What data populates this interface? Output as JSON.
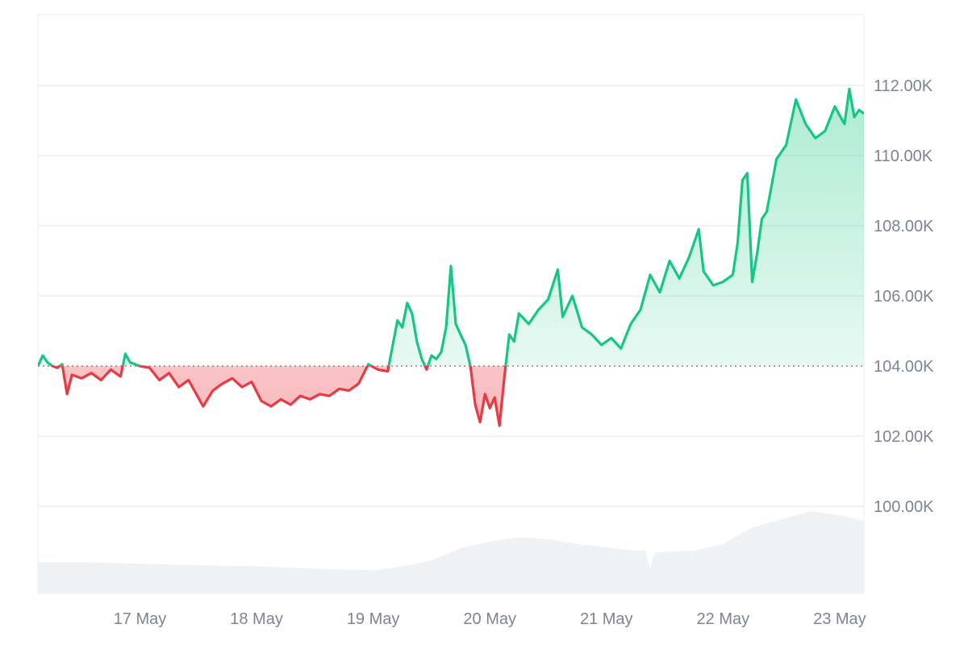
{
  "chart_data": {
    "type": "area",
    "title": "",
    "xlabel": "",
    "ylabel": "",
    "baseline": 104000,
    "ylim": [
      97500,
      114000
    ],
    "yticks": [
      100000,
      102000,
      104000,
      106000,
      108000,
      110000,
      112000
    ],
    "ytick_labels": [
      "100.00K",
      "102.00K",
      "104.00K",
      "106.00K",
      "108.00K",
      "110.00K",
      "112.00K"
    ],
    "xlim": [
      "2025-05-16T03:00",
      "2025-05-23T05:00"
    ],
    "xticks": [
      "2025-05-17",
      "2025-05-18",
      "2025-05-19",
      "2025-05-20",
      "2025-05-21",
      "2025-05-22",
      "2025-05-23"
    ],
    "xtick_labels": [
      "17 May",
      "18 May",
      "19 May",
      "20 May",
      "21 May",
      "22 May",
      "23 May"
    ],
    "grid": true,
    "legend": "none",
    "colors": {
      "up": "#16c784",
      "down": "#ea3943",
      "volume": "#eff2f5",
      "grid": "#eceef1",
      "axis_text": "#7d8492"
    },
    "price_series": {
      "name": "",
      "points": [
        [
          "2025-05-16T03:00",
          104000
        ],
        [
          "2025-05-16T04:00",
          104300
        ],
        [
          "2025-05-16T05:00",
          104100
        ],
        [
          "2025-05-16T06:00",
          104000
        ],
        [
          "2025-05-16T07:00",
          103950
        ],
        [
          "2025-05-16T08:00",
          104050
        ],
        [
          "2025-05-16T09:00",
          103200
        ],
        [
          "2025-05-16T10:00",
          103750
        ],
        [
          "2025-05-16T12:00",
          103650
        ],
        [
          "2025-p5-16T14:00",
          103800
        ],
        [
          "2025-05-16T16:00",
          103600
        ],
        [
          "2025-05-16T18:00",
          103900
        ],
        [
          "2025-05-16T20:00",
          103700
        ],
        [
          "2025-05-16T21:00",
          104350
        ],
        [
          "2025-05-16T22:00",
          104100
        ],
        [
          "2025-05-17T00:00",
          104000
        ],
        [
          "2025-05-17T02:00",
          103950
        ],
        [
          "2025-05-17T04:00",
          103600
        ],
        [
          "2025-05-17T06:00",
          103800
        ],
        [
          "2025-05-17T08:00",
          103400
        ],
        [
          "2025-05-17T10:00",
          103600
        ],
        [
          "2025-05-17T12:00",
          103100
        ],
        [
          "2025-05-17T13:00",
          102850
        ],
        [
          "2025-05-17T15:00",
          103300
        ],
        [
          "2025-05-17T17:00",
          103500
        ],
        [
          "2025-05-17T19:00",
          103650
        ],
        [
          "2025-05-17T21:00",
          103400
        ],
        [
          "2025-05-17T23:00",
          103550
        ],
        [
          "2025-05-18T01:00",
          103000
        ],
        [
          "2025-05-18T03:00",
          102850
        ],
        [
          "2025-05-18T05:00",
          103050
        ],
        [
          "2025-05-18T07:00",
          102900
        ],
        [
          "2025-05-18T09:00",
          103150
        ],
        [
          "2025-05-18T11:00",
          103050
        ],
        [
          "2025-05-18T13:00",
          103200
        ],
        [
          "2025-05-18T15:00",
          103150
        ],
        [
          "2025-05-18T17:00",
          103350
        ],
        [
          "2025-05-18T19:00",
          103300
        ],
        [
          "2025-05-18T21:00",
          103500
        ],
        [
          "2025-05-18T23:00",
          104050
        ],
        [
          "2025-05-19T01:00",
          103900
        ],
        [
          "2025-05-19T03:00",
          103850
        ],
        [
          "2025-05-19T05:00",
          105300
        ],
        [
          "2025-05-19T06:00",
          105100
        ],
        [
          "2025-05-19T07:00",
          105800
        ],
        [
          "2025-05-19T08:00",
          105500
        ],
        [
          "2025-05-19T09:00",
          104700
        ],
        [
          "2025-05-19T10:00",
          104200
        ],
        [
          "2025-05-19T11:00",
          103900
        ],
        [
          "2025-05-19T12:00",
          104300
        ],
        [
          "2025-05-19T13:00",
          104200
        ],
        [
          "2025-05-19T14:00",
          104400
        ],
        [
          "2025-05-19T15:00",
          105100
        ],
        [
          "2025-05-19T16:00",
          106850
        ],
        [
          "2025-05-19T17:00",
          105200
        ],
        [
          "2025-05-19T18:00",
          104900
        ],
        [
          "2025-05-19T19:00",
          104600
        ],
        [
          "2025-05-19T20:00",
          104000
        ],
        [
          "2025-05-19T21:00",
          102900
        ],
        [
          "2025-05-19T22:00",
          102400
        ],
        [
          "2025-05-19T23:00",
          103200
        ],
        [
          "2025-05-20T00:00",
          102800
        ],
        [
          "2025-05-20T01:00",
          103100
        ],
        [
          "2025-05-20T02:00",
          102300
        ],
        [
          "2025-05-20T03:00",
          103700
        ],
        [
          "2025-05-20T04:00",
          104900
        ],
        [
          "2025-05-20T05:00",
          104700
        ],
        [
          "2025-05-20T06:00",
          105500
        ],
        [
          "2025-05-20T08:00",
          105200
        ],
        [
          "2025-05-20T10:00",
          105600
        ],
        [
          "2025-05-20T12:00",
          105900
        ],
        [
          "2025-05-20T14:00",
          106750
        ],
        [
          "2025-05-20T15:00",
          105400
        ],
        [
          "2025-05-20T17:00",
          106000
        ],
        [
          "2025-05-20T19:00",
          105100
        ],
        [
          "2025-05-20T21:00",
          104900
        ],
        [
          "2025-05-20T23:00",
          104600
        ],
        [
          "2025-05-21T01:00",
          104800
        ],
        [
          "2025-05-21T03:00",
          104500
        ],
        [
          "2025-05-21T05:00",
          105200
        ],
        [
          "2025-05-21T07:00",
          105600
        ],
        [
          "2025-05-21T09:00",
          106600
        ],
        [
          "2025-05-21T11:00",
          106100
        ],
        [
          "2025-05-21T13:00",
          107000
        ],
        [
          "2025-05-21T15:00",
          106500
        ],
        [
          "2025-05-21T17:00",
          107100
        ],
        [
          "2025-05-21T19:00",
          107900
        ],
        [
          "2025-05-21T20:00",
          106700
        ],
        [
          "2025-05-21T22:00",
          106300
        ],
        [
          "2025-05-22T00:00",
          106400
        ],
        [
          "2025-05-22T02:00",
          106600
        ],
        [
          "2025-05-22T03:00",
          107500
        ],
        [
          "2025-05-22T04:00",
          109300
        ],
        [
          "2025-05-22T05:00",
          109500
        ],
        [
          "2025-05-22T06:00",
          106400
        ],
        [
          "2025-05-22T07:00",
          107200
        ],
        [
          "2025-05-22T08:00",
          108200
        ],
        [
          "2025-05-22T09:00",
          108400
        ],
        [
          "2025-05-22T11:00",
          109900
        ],
        [
          "2025-05-22T13:00",
          110300
        ],
        [
          "2025-05-22T15:00",
          111600
        ],
        [
          "2025-05-22T17:00",
          110900
        ],
        [
          "2025-05-22T19:00",
          110500
        ],
        [
          "2025-05-22T21:00",
          110700
        ],
        [
          "2025-05-22T23:00",
          111400
        ],
        [
          "2025-05-23T01:00",
          110900
        ],
        [
          "2025-05-23T02:00",
          111900
        ],
        [
          "2025-05-23T03:00",
          111100
        ],
        [
          "2025-05-23T04:00",
          111300
        ],
        [
          "2025-05-23T05:00",
          111200
        ]
      ]
    },
    "volume_series": {
      "name": "",
      "points": [
        [
          "2025-05-16T03:00",
          0.38
        ],
        [
          "2025-05-16T12:00",
          0.38
        ],
        [
          "2025-05-17T00:00",
          0.36
        ],
        [
          "2025-05-17T12:00",
          0.34
        ],
        [
          "2025-05-18T00:00",
          0.33
        ],
        [
          "2025-05-18T12:00",
          0.3
        ],
        [
          "2025-05-19T00:00",
          0.28
        ],
        [
          "2025-05-19T06:00",
          0.33
        ],
        [
          "2025-05-19T12:00",
          0.4
        ],
        [
          "2025-05-19T18:00",
          0.55
        ],
        [
          "2025-05-20T00:00",
          0.63
        ],
        [
          "2025-05-20T06:00",
          0.68
        ],
        [
          "2025-05-20T12:00",
          0.66
        ],
        [
          "2025-05-20T18:00",
          0.6
        ],
        [
          "2025-05-21T00:00",
          0.56
        ],
        [
          "2025-05-21T06:00",
          0.52
        ],
        [
          "2025-05-21T08:00",
          0.52
        ],
        [
          "2025-05-21T09:00",
          0.3
        ],
        [
          "2025-05-21T10:00",
          0.5
        ],
        [
          "2025-05-21T18:00",
          0.52
        ],
        [
          "2025-05-22T00:00",
          0.6
        ],
        [
          "2025-05-22T06:00",
          0.8
        ],
        [
          "2025-05-22T12:00",
          0.9
        ],
        [
          "2025-05-22T18:00",
          1.0
        ],
        [
          "2025-05-23T00:00",
          0.95
        ],
        [
          "2025-05-23T05:00",
          0.88
        ]
      ]
    }
  }
}
